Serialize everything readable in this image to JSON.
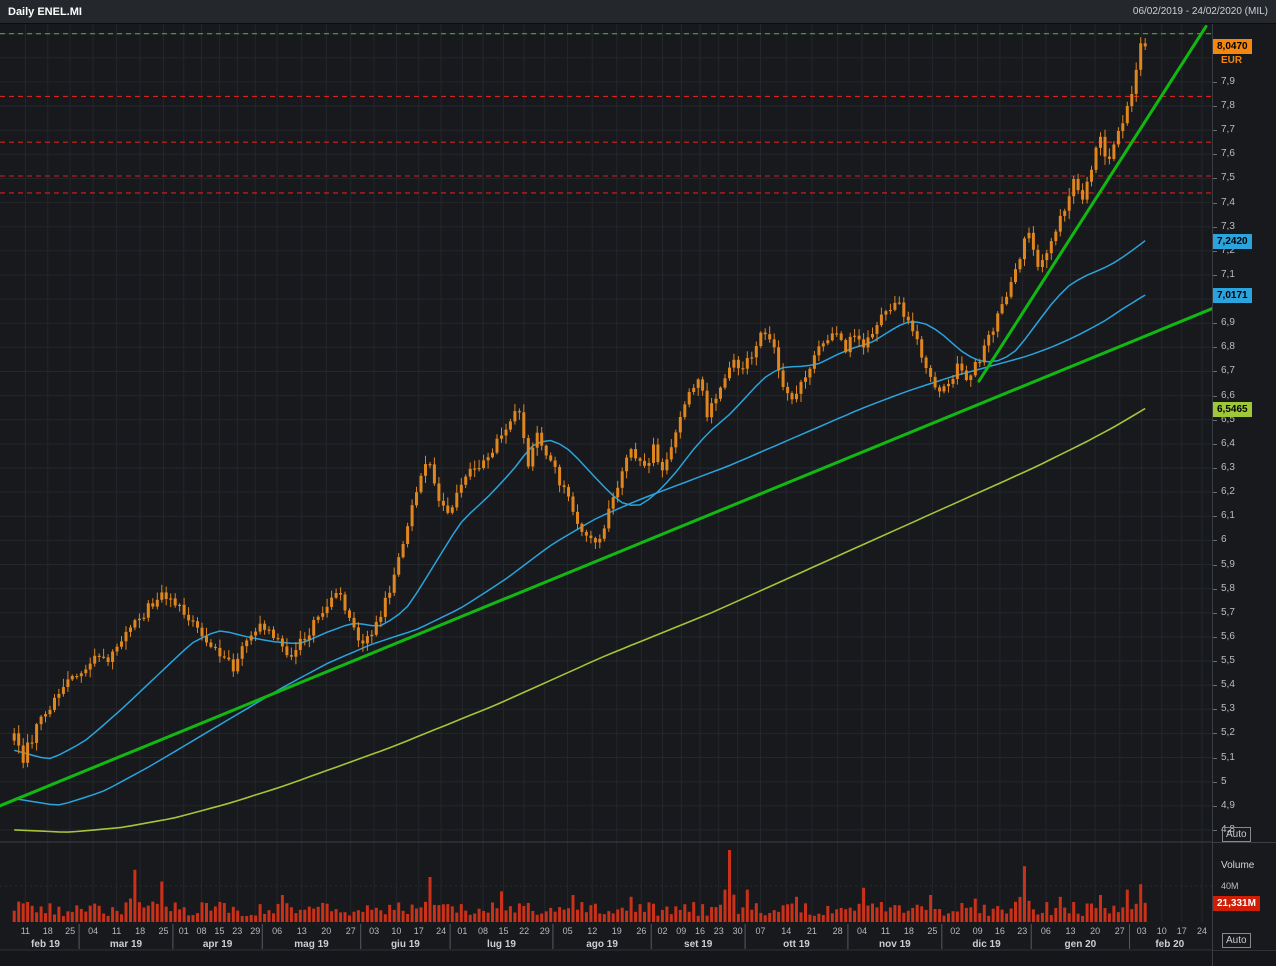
{
  "header": {
    "title": "Daily ENEL.MI",
    "date_range": "06/02/2019 - 24/02/2020 (MIL)"
  },
  "price_axis": {
    "currency": "EUR",
    "auto_label": "Auto",
    "badges": {
      "last": "8,0470",
      "ma_fast": "7,2420",
      "ma_slow": "7,0171",
      "ma_long": "6,5465"
    }
  },
  "volume_pane": {
    "title": "Volume",
    "scale_label": "40M",
    "last_label": "21,331M",
    "auto_label": "Auto"
  },
  "x_axis": {
    "months": [
      {
        "label": "feb 19",
        "days": [
          "11",
          "18",
          "25"
        ]
      },
      {
        "label": "mar 19",
        "days": [
          "04",
          "11",
          "18",
          "25"
        ]
      },
      {
        "label": "apr 19",
        "days": [
          "01",
          "08",
          "15",
          "23",
          "29"
        ]
      },
      {
        "label": "mag 19",
        "days": [
          "06",
          "13",
          "20",
          "27"
        ]
      },
      {
        "label": "giu 19",
        "days": [
          "03",
          "10",
          "17",
          "24"
        ]
      },
      {
        "label": "lug 19",
        "days": [
          "01",
          "08",
          "15",
          "22",
          "29"
        ]
      },
      {
        "label": "ago 19",
        "days": [
          "05",
          "12",
          "19",
          "26"
        ]
      },
      {
        "label": "set 19",
        "days": [
          "02",
          "09",
          "16",
          "23",
          "30"
        ]
      },
      {
        "label": "ott 19",
        "days": [
          "07",
          "14",
          "21",
          "28"
        ]
      },
      {
        "label": "nov 19",
        "days": [
          "04",
          "11",
          "18",
          "25"
        ]
      },
      {
        "label": "dic 19",
        "days": [
          "02",
          "09",
          "16",
          "23"
        ]
      },
      {
        "label": "gen 20",
        "days": [
          "06",
          "13",
          "20",
          "27"
        ]
      },
      {
        "label": "feb 20",
        "days": [
          "03",
          "10",
          "17",
          "24"
        ]
      }
    ]
  },
  "chart_data": {
    "type": "candlestick",
    "title": "Daily ENEL.MI",
    "symbol": "ENEL.MI",
    "timeframe": "Daily",
    "currency": "EUR",
    "y_range": [
      4.75,
      8.14
    ],
    "y_tick_step": 0.1,
    "y_tick_min": 4.8,
    "y_tick_max": 7.9,
    "bars_total": 254,
    "axis_slots": 268,
    "levels": {
      "last_price": 8.047,
      "ma_fast": 7.242,
      "ma_slow": 7.017,
      "ma_long": 6.5465,
      "volume_last_m": 21.331,
      "volume_scale_m": 40
    },
    "close_anchors": [
      [
        0,
        5.2
      ],
      [
        2,
        5.1
      ],
      [
        5,
        5.22
      ],
      [
        9,
        5.33
      ],
      [
        14,
        5.45
      ],
      [
        18,
        5.52
      ],
      [
        21,
        5.5
      ],
      [
        25,
        5.6
      ],
      [
        29,
        5.7
      ],
      [
        33,
        5.77
      ],
      [
        35,
        5.76
      ],
      [
        38,
        5.7
      ],
      [
        42,
        5.62
      ],
      [
        46,
        5.52
      ],
      [
        49,
        5.47
      ],
      [
        52,
        5.58
      ],
      [
        55,
        5.65
      ],
      [
        58,
        5.6
      ],
      [
        61,
        5.52
      ],
      [
        65,
        5.6
      ],
      [
        69,
        5.7
      ],
      [
        72,
        5.79
      ],
      [
        75,
        5.68
      ],
      [
        78,
        5.56
      ],
      [
        82,
        5.68
      ],
      [
        85,
        5.86
      ],
      [
        88,
        6.05
      ],
      [
        91,
        6.28
      ],
      [
        93,
        6.33
      ],
      [
        95,
        6.18
      ],
      [
        97,
        6.1
      ],
      [
        99,
        6.18
      ],
      [
        102,
        6.28
      ],
      [
        105,
        6.33
      ],
      [
        108,
        6.4
      ],
      [
        111,
        6.48
      ],
      [
        113,
        6.55
      ],
      [
        115,
        6.3
      ],
      [
        117,
        6.44
      ],
      [
        119,
        6.36
      ],
      [
        122,
        6.25
      ],
      [
        125,
        6.12
      ],
      [
        128,
        6.02
      ],
      [
        130,
        5.97
      ],
      [
        133,
        6.12
      ],
      [
        136,
        6.3
      ],
      [
        138,
        6.38
      ],
      [
        141,
        6.3
      ],
      [
        143,
        6.38
      ],
      [
        145,
        6.3
      ],
      [
        148,
        6.46
      ],
      [
        151,
        6.62
      ],
      [
        153,
        6.68
      ],
      [
        155,
        6.52
      ],
      [
        158,
        6.62
      ],
      [
        161,
        6.76
      ],
      [
        163,
        6.7
      ],
      [
        165,
        6.78
      ],
      [
        168,
        6.87
      ],
      [
        170,
        6.78
      ],
      [
        172,
        6.65
      ],
      [
        174,
        6.57
      ],
      [
        177,
        6.68
      ],
      [
        180,
        6.8
      ],
      [
        183,
        6.86
      ],
      [
        186,
        6.8
      ],
      [
        188,
        6.86
      ],
      [
        190,
        6.8
      ],
      [
        192,
        6.86
      ],
      [
        195,
        6.94
      ],
      [
        197,
        7.0
      ],
      [
        199,
        6.93
      ],
      [
        201,
        6.88
      ],
      [
        203,
        6.78
      ],
      [
        205,
        6.68
      ],
      [
        207,
        6.62
      ],
      [
        209,
        6.66
      ],
      [
        211,
        6.72
      ],
      [
        213,
        6.66
      ],
      [
        215,
        6.72
      ],
      [
        218,
        6.84
      ],
      [
        221,
        6.98
      ],
      [
        224,
        7.12
      ],
      [
        226,
        7.24
      ],
      [
        227,
        7.26
      ],
      [
        229,
        7.12
      ],
      [
        231,
        7.2
      ],
      [
        233,
        7.28
      ],
      [
        235,
        7.38
      ],
      [
        237,
        7.48
      ],
      [
        239,
        7.41
      ],
      [
        241,
        7.55
      ],
      [
        243,
        7.66
      ],
      [
        245,
        7.56
      ],
      [
        247,
        7.68
      ],
      [
        249,
        7.8
      ],
      [
        250,
        7.85
      ],
      [
        251,
        7.95
      ],
      [
        252,
        8.06
      ],
      [
        253,
        8.047
      ]
    ],
    "ma_fast_anchors": [
      [
        0,
        5.13
      ],
      [
        8,
        5.09
      ],
      [
        16,
        5.17
      ],
      [
        24,
        5.3
      ],
      [
        32,
        5.44
      ],
      [
        40,
        5.58
      ],
      [
        46,
        5.63
      ],
      [
        52,
        5.6
      ],
      [
        58,
        5.58
      ],
      [
        64,
        5.57
      ],
      [
        70,
        5.62
      ],
      [
        76,
        5.66
      ],
      [
        82,
        5.64
      ],
      [
        88,
        5.72
      ],
      [
        94,
        5.9
      ],
      [
        100,
        6.08
      ],
      [
        106,
        6.18
      ],
      [
        112,
        6.3
      ],
      [
        116,
        6.4
      ],
      [
        120,
        6.42
      ],
      [
        124,
        6.38
      ],
      [
        128,
        6.3
      ],
      [
        132,
        6.22
      ],
      [
        136,
        6.15
      ],
      [
        140,
        6.14
      ],
      [
        144,
        6.2
      ],
      [
        148,
        6.28
      ],
      [
        152,
        6.38
      ],
      [
        156,
        6.46
      ],
      [
        160,
        6.52
      ],
      [
        164,
        6.6
      ],
      [
        168,
        6.68
      ],
      [
        172,
        6.72
      ],
      [
        176,
        6.72
      ],
      [
        180,
        6.73
      ],
      [
        184,
        6.77
      ],
      [
        188,
        6.8
      ],
      [
        192,
        6.82
      ],
      [
        196,
        6.87
      ],
      [
        200,
        6.91
      ],
      [
        204,
        6.9
      ],
      [
        208,
        6.85
      ],
      [
        212,
        6.78
      ],
      [
        216,
        6.74
      ],
      [
        220,
        6.74
      ],
      [
        224,
        6.78
      ],
      [
        228,
        6.88
      ],
      [
        232,
        6.98
      ],
      [
        236,
        7.06
      ],
      [
        240,
        7.1
      ],
      [
        244,
        7.13
      ],
      [
        247,
        7.16
      ],
      [
        250,
        7.2
      ],
      [
        253,
        7.242
      ]
    ],
    "ma_slow_anchors": [
      [
        0,
        4.93
      ],
      [
        10,
        4.9
      ],
      [
        20,
        4.96
      ],
      [
        30,
        5.06
      ],
      [
        40,
        5.17
      ],
      [
        50,
        5.28
      ],
      [
        60,
        5.39
      ],
      [
        70,
        5.49
      ],
      [
        80,
        5.57
      ],
      [
        90,
        5.63
      ],
      [
        100,
        5.72
      ],
      [
        110,
        5.84
      ],
      [
        120,
        5.98
      ],
      [
        130,
        6.09
      ],
      [
        140,
        6.17
      ],
      [
        150,
        6.24
      ],
      [
        160,
        6.31
      ],
      [
        170,
        6.39
      ],
      [
        180,
        6.47
      ],
      [
        190,
        6.55
      ],
      [
        200,
        6.62
      ],
      [
        210,
        6.68
      ],
      [
        220,
        6.73
      ],
      [
        226,
        6.76
      ],
      [
        232,
        6.8
      ],
      [
        238,
        6.85
      ],
      [
        244,
        6.91
      ],
      [
        248,
        6.96
      ],
      [
        253,
        7.017
      ]
    ],
    "ma_long_anchors": [
      [
        0,
        4.8
      ],
      [
        12,
        4.79
      ],
      [
        24,
        4.81
      ],
      [
        36,
        4.85
      ],
      [
        48,
        4.91
      ],
      [
        60,
        4.98
      ],
      [
        72,
        5.06
      ],
      [
        84,
        5.14
      ],
      [
        96,
        5.23
      ],
      [
        108,
        5.32
      ],
      [
        120,
        5.42
      ],
      [
        132,
        5.52
      ],
      [
        144,
        5.61
      ],
      [
        156,
        5.7
      ],
      [
        168,
        5.8
      ],
      [
        180,
        5.9
      ],
      [
        192,
        6.0
      ],
      [
        204,
        6.1
      ],
      [
        216,
        6.2
      ],
      [
        228,
        6.3
      ],
      [
        240,
        6.41
      ],
      [
        247,
        6.48
      ],
      [
        253,
        6.5465
      ]
    ],
    "trendlines": [
      {
        "x1f": 0.0,
        "p1": 4.9,
        "x2f": 1.0,
        "p2": 6.96
      },
      {
        "x1f": 0.808,
        "p1": 6.66,
        "x2f": 0.995,
        "p2": 8.13
      }
    ],
    "h_lines": [
      {
        "price": 8.1,
        "color": "#2db52d"
      },
      {
        "price": 7.84,
        "color": "#d32222"
      },
      {
        "price": 7.65,
        "color": "#d32222"
      },
      {
        "price": 7.51,
        "color": "#d32222"
      },
      {
        "price": 7.44,
        "color": "#d32222"
      }
    ],
    "volume_spikes": [
      [
        27,
        58
      ],
      [
        33,
        45
      ],
      [
        60,
        30
      ],
      [
        93,
        50
      ],
      [
        109,
        34
      ],
      [
        125,
        30
      ],
      [
        138,
        28
      ],
      [
        160,
        80
      ],
      [
        164,
        36
      ],
      [
        175,
        28
      ],
      [
        190,
        38
      ],
      [
        205,
        30
      ],
      [
        215,
        26
      ],
      [
        226,
        62
      ],
      [
        234,
        28
      ],
      [
        243,
        30
      ],
      [
        249,
        36
      ],
      [
        252,
        42
      ],
      [
        253,
        21.331
      ]
    ],
    "volume_base_m": 13,
    "month_bar_bounds": [
      0,
      15,
      36,
      56,
      78,
      98,
      121,
      143,
      164,
      187,
      208,
      228,
      250,
      268
    ],
    "colors": {
      "candle": "#e0861f",
      "ma_fast": "#2ba3dc",
      "ma_slow": "#2ba3dc",
      "ma_long": "#a6c43a",
      "trend": "#12b812",
      "volume": "#c93118",
      "grid": "#23262b",
      "axis_text": "#b9bcc1"
    }
  }
}
